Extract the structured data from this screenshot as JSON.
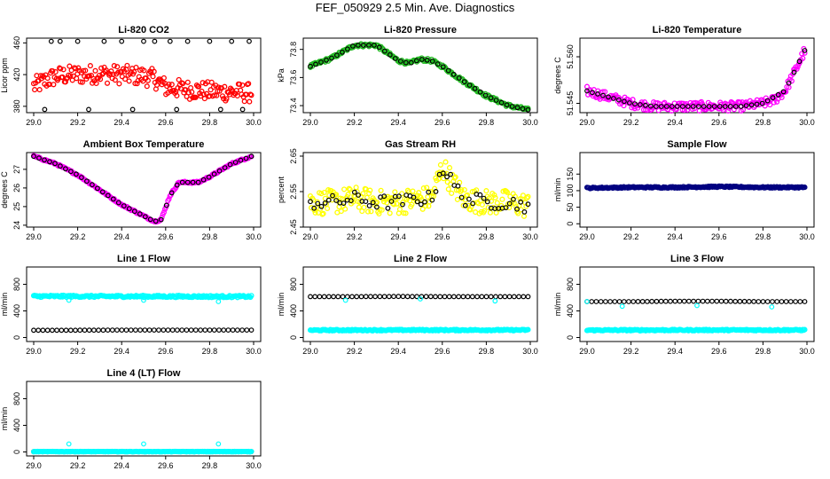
{
  "figure": {
    "title": "FEF_050929  2.5 Min. Ave. Diagnostics"
  },
  "colors": {
    "black": "#000000",
    "red": "#ff0000",
    "green": "#22bb22",
    "magenta": "#ff00ff",
    "yellow": "#ffff00",
    "navy": "#000080",
    "cyan": "#00ffff"
  },
  "chart_data": [
    {
      "type": "scatter",
      "title": "Li-820 CO2",
      "ylabel": "Licor ppm",
      "xlim": [
        29.0,
        30.0
      ],
      "ylim": [
        372,
        466
      ],
      "xticks": [
        "29.0",
        "29.2",
        "29.4",
        "29.6",
        "29.8",
        "30.0"
      ],
      "yticks": [
        "380",
        "420",
        "460"
      ],
      "series": [
        {
          "color": "#ff0000",
          "marker": "dense",
          "x": [
            29.0,
            29.05,
            29.1,
            29.2,
            29.3,
            29.4,
            29.5,
            29.55,
            29.6,
            29.7,
            29.8,
            29.9,
            29.99
          ],
          "y": [
            405,
            412,
            418,
            420,
            421,
            420,
            418,
            415,
            404,
            401,
            399,
            398,
            397
          ],
          "spread": 12
        },
        {
          "color": "#000000",
          "marker": "circle",
          "x": [
            29.08,
            29.12,
            29.2,
            29.32,
            29.4,
            29.5,
            29.55,
            29.62,
            29.7,
            29.8,
            29.9,
            29.98,
            29.05,
            29.25,
            29.45,
            29.65,
            29.85,
            29.95
          ],
          "y": [
            462,
            462,
            462,
            462,
            462,
            462,
            462,
            462,
            462,
            462,
            462,
            462,
            376,
            376,
            376,
            376,
            376,
            376
          ]
        }
      ]
    },
    {
      "type": "scatter",
      "title": "Li-820 Pressure",
      "ylabel": "kPa",
      "xlim": [
        29.0,
        30.0
      ],
      "ylim": [
        73.35,
        73.88
      ],
      "xticks": [
        "29.0",
        "29.2",
        "29.4",
        "29.6",
        "29.8",
        "30.0"
      ],
      "yticks": [
        "73.4",
        "73.6",
        "73.8"
      ],
      "series": [
        {
          "color": "#22bb22",
          "marker": "dense",
          "x": [
            29.0,
            29.1,
            29.2,
            29.3,
            29.4,
            29.45,
            29.5,
            29.55,
            29.6,
            29.7,
            29.8,
            29.9,
            29.99
          ],
          "y": [
            73.68,
            73.74,
            73.83,
            73.83,
            73.72,
            73.7,
            73.73,
            73.72,
            73.68,
            73.57,
            73.47,
            73.4,
            73.37
          ],
          "spread": 0.012
        },
        {
          "color": "#000000",
          "marker": "circle",
          "x": [
            29.0,
            29.1,
            29.2,
            29.3,
            29.4,
            29.45,
            29.5,
            29.55,
            29.6,
            29.7,
            29.8,
            29.9,
            29.99
          ],
          "y": [
            73.68,
            73.74,
            73.83,
            73.83,
            73.72,
            73.7,
            73.73,
            73.72,
            73.68,
            73.57,
            73.47,
            73.4,
            73.37
          ]
        }
      ]
    },
    {
      "type": "scatter",
      "title": "Li-820 Temperature",
      "ylabel": "degrees C",
      "xlim": [
        29.0,
        30.0
      ],
      "ylim": [
        51.542,
        51.566
      ],
      "xticks": [
        "29.0",
        "29.2",
        "29.4",
        "29.6",
        "29.8",
        "30.0"
      ],
      "yticks": [
        "51.545",
        "51.560"
      ],
      "series": [
        {
          "color": "#ff00ff",
          "marker": "dense",
          "x": [
            29.0,
            29.05,
            29.1,
            29.15,
            29.2,
            29.3,
            29.5,
            29.7,
            29.8,
            29.85,
            29.9,
            29.95,
            29.99
          ],
          "y": [
            51.549,
            51.548,
            51.547,
            51.546,
            51.545,
            51.544,
            51.544,
            51.544,
            51.545,
            51.546,
            51.549,
            51.556,
            51.562
          ],
          "spread": 0.0015
        },
        {
          "color": "#000000",
          "marker": "circle",
          "x": [
            29.0,
            29.1,
            29.2,
            29.3,
            29.5,
            29.7,
            29.8,
            29.9,
            29.99
          ],
          "y": [
            51.549,
            51.547,
            51.545,
            51.544,
            51.544,
            51.544,
            51.545,
            51.549,
            51.562
          ]
        }
      ]
    },
    {
      "type": "scatter",
      "title": "Ambient Box Temperature",
      "ylabel": "degrees C",
      "xlim": [
        29.0,
        30.0
      ],
      "ylim": [
        23.9,
        27.9
      ],
      "xticks": [
        "29.0",
        "29.2",
        "29.4",
        "29.6",
        "29.8",
        "30.0"
      ],
      "yticks": [
        "24",
        "25",
        "26",
        "27"
      ],
      "series": [
        {
          "color": "#ff00ff",
          "marker": "dense",
          "x": [
            29.0,
            29.1,
            29.2,
            29.3,
            29.4,
            29.5,
            29.55,
            29.58,
            29.62,
            29.66,
            29.7,
            29.75,
            29.8,
            29.9,
            29.99
          ],
          "y": [
            27.7,
            27.3,
            26.7,
            25.9,
            25.1,
            24.5,
            24.2,
            24.3,
            25.6,
            26.3,
            26.3,
            26.3,
            26.6,
            27.3,
            27.7
          ],
          "spread": 0.05
        },
        {
          "color": "#000000",
          "marker": "circle",
          "x": [
            29.0,
            29.1,
            29.2,
            29.3,
            29.4,
            29.5,
            29.55,
            29.58,
            29.62,
            29.66,
            29.7,
            29.75,
            29.8,
            29.9,
            29.99
          ],
          "y": [
            27.7,
            27.3,
            26.7,
            25.9,
            25.1,
            24.5,
            24.2,
            24.3,
            25.6,
            26.3,
            26.3,
            26.3,
            26.6,
            27.3,
            27.7
          ]
        }
      ]
    },
    {
      "type": "scatter",
      "title": "Gas Stream RH",
      "ylabel": "percent",
      "xlim": [
        29.0,
        30.0
      ],
      "ylim": [
        2.45,
        2.66
      ],
      "xticks": [
        "29.0",
        "29.2",
        "29.4",
        "29.6",
        "29.8",
        "30.0"
      ],
      "yticks": [
        "2.45",
        "2.55",
        "2.65"
      ],
      "series": [
        {
          "color": "#ffff00",
          "marker": "dense",
          "x": [
            29.0,
            29.1,
            29.2,
            29.3,
            29.4,
            29.5,
            29.55,
            29.6,
            29.65,
            29.7,
            29.8,
            29.9,
            29.99
          ],
          "y": [
            2.52,
            2.52,
            2.53,
            2.52,
            2.52,
            2.53,
            2.53,
            2.62,
            2.57,
            2.53,
            2.52,
            2.52,
            2.51
          ],
          "spread": 0.035
        },
        {
          "color": "#000000",
          "marker": "circle",
          "x": [
            29.0,
            29.1,
            29.2,
            29.3,
            29.4,
            29.5,
            29.55,
            29.6,
            29.65,
            29.7,
            29.8,
            29.9,
            29.99
          ],
          "y": [
            2.52,
            2.52,
            2.53,
            2.52,
            2.52,
            2.53,
            2.53,
            2.62,
            2.57,
            2.53,
            2.52,
            2.52,
            2.51
          ],
          "spread": 0.02
        }
      ]
    },
    {
      "type": "scatter",
      "title": "Sample Flow",
      "ylabel": "ml/min",
      "xlim": [
        29.0,
        30.0
      ],
      "ylim": [
        -10,
        215
      ],
      "xticks": [
        "29.0",
        "29.2",
        "29.4",
        "29.6",
        "29.8",
        "30.0"
      ],
      "yticks": [
        "0",
        "50",
        "100",
        "150"
      ],
      "series": [
        {
          "color": "#000080",
          "marker": "dense",
          "x": [
            29.0,
            29.2,
            29.4,
            29.6,
            29.8,
            29.99
          ],
          "y": [
            108,
            110,
            110,
            112,
            110,
            110
          ],
          "spread": 2
        }
      ]
    },
    {
      "type": "scatter",
      "title": "Line 1 Flow",
      "ylabel": "ml/min",
      "xlim": [
        29.0,
        30.0
      ],
      "ylim": [
        -60,
        1060
      ],
      "xticks": [
        "29.0",
        "29.2",
        "29.4",
        "29.6",
        "29.8",
        "30.0"
      ],
      "yticks": [
        "0",
        "400",
        "800"
      ],
      "series": [
        {
          "color": "#00ffff",
          "marker": "dense",
          "x": [
            29.0,
            29.5,
            29.99
          ],
          "y": [
            620,
            618,
            615
          ],
          "spread": 15
        },
        {
          "color": "#00ffff",
          "marker": "circle",
          "x": [
            29.16,
            29.5,
            29.84
          ],
          "y": [
            560,
            560,
            540
          ]
        },
        {
          "color": "#000000",
          "marker": "circle",
          "x": [
            29.0,
            29.2,
            29.4,
            29.6,
            29.8,
            29.99
          ],
          "y": [
            110,
            110,
            112,
            112,
            112,
            112
          ]
        }
      ]
    },
    {
      "type": "scatter",
      "title": "Line 2 Flow",
      "ylabel": "ml/min",
      "xlim": [
        29.0,
        30.0
      ],
      "ylim": [
        -60,
        1060
      ],
      "xticks": [
        "29.0",
        "29.2",
        "29.4",
        "29.6",
        "29.8",
        "30.0"
      ],
      "yticks": [
        "0",
        "400",
        "800"
      ],
      "series": [
        {
          "color": "#000000",
          "marker": "circle",
          "x": [
            29.0,
            29.2,
            29.4,
            29.6,
            29.8,
            29.99
          ],
          "y": [
            615,
            615,
            617,
            615,
            615,
            615
          ]
        },
        {
          "color": "#00ffff",
          "marker": "dense",
          "x": [
            29.0,
            29.5,
            29.99
          ],
          "y": [
            110,
            112,
            112
          ],
          "spread": 10
        },
        {
          "color": "#00ffff",
          "marker": "circle",
          "x": [
            29.16,
            29.5,
            29.84
          ],
          "y": [
            560,
            580,
            550
          ]
        }
      ]
    },
    {
      "type": "scatter",
      "title": "Line 3 Flow",
      "ylabel": "ml/min",
      "xlim": [
        29.0,
        30.0
      ],
      "ylim": [
        -60,
        1060
      ],
      "xticks": [
        "29.0",
        "29.2",
        "29.4",
        "29.6",
        "29.8",
        "30.0"
      ],
      "yticks": [
        "0",
        "400",
        "800"
      ],
      "series": [
        {
          "color": "#000000",
          "marker": "circle",
          "x": [
            29.0,
            29.2,
            29.4,
            29.6,
            29.8,
            29.99
          ],
          "y": [
            540,
            540,
            545,
            545,
            540,
            540
          ]
        },
        {
          "color": "#00ffff",
          "marker": "dense",
          "x": [
            29.0,
            29.5,
            29.99
          ],
          "y": [
            110,
            112,
            112
          ],
          "spread": 10
        },
        {
          "color": "#00ffff",
          "marker": "circle",
          "x": [
            29.0,
            29.16,
            29.5,
            29.84
          ],
          "y": [
            540,
            470,
            480,
            460
          ]
        }
      ]
    },
    {
      "type": "scatter",
      "title": "Line 4 (LT) Flow",
      "ylabel": "ml/min",
      "xlim": [
        29.0,
        30.0
      ],
      "ylim": [
        -60,
        1060
      ],
      "xticks": [
        "29.0",
        "29.2",
        "29.4",
        "29.6",
        "29.8",
        "30.0"
      ],
      "yticks": [
        "0",
        "400",
        "800"
      ],
      "series": [
        {
          "color": "#000000",
          "marker": "circle",
          "x": [
            29.0,
            29.2,
            29.4,
            29.6,
            29.8,
            29.99
          ],
          "y": [
            5,
            5,
            5,
            5,
            5,
            5
          ]
        },
        {
          "color": "#00ffff",
          "marker": "circle",
          "x": [
            29.16,
            29.5,
            29.84
          ],
          "y": [
            120,
            120,
            120
          ]
        },
        {
          "color": "#00ffff",
          "marker": "dense",
          "x": [
            29.0,
            29.5,
            29.99
          ],
          "y": [
            5,
            5,
            5
          ],
          "spread": 3
        }
      ]
    }
  ]
}
